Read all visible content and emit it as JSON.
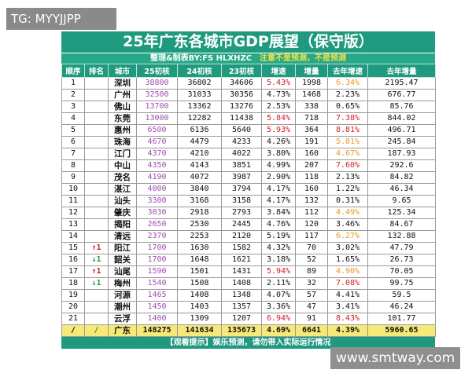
{
  "watermarks": {
    "top_left": "TG: MYYJJPP",
    "bottom_right": "www.smtway.com"
  },
  "title": "25年广东各城市GDP展望（保守版）",
  "subtitle": "整理&制表BY:FS HLXHZC",
  "subtitle_note": "注意不是预测，不是预测",
  "headers": [
    "顺序",
    "排名",
    "城市",
    "25初核",
    "24初核",
    "23初核",
    "增速",
    "增量",
    "去年增速",
    "去年增量"
  ],
  "colors": {
    "header": "#1f9a7e",
    "projection": "#a050b0",
    "high": "#d0202a",
    "mid": "#e89a2a",
    "total_row": "#f6e97a",
    "rank_up": "#d02020",
    "rank_down": "#1a9a50"
  },
  "rows": [
    [
      "1",
      "",
      "深圳",
      "38800",
      "36802",
      "34606",
      "5.43%",
      "1998",
      "6.34%",
      "2195.47"
    ],
    [
      "2",
      "",
      "广州",
      "32500",
      "31033",
      "30356",
      "4.73%",
      "1468",
      "2.23%",
      "676.77"
    ],
    [
      "3",
      "",
      "佛山",
      "13700",
      "13362",
      "13276",
      "2.53%",
      "338",
      "0.65%",
      "85.76"
    ],
    [
      "4",
      "",
      "东莞",
      "13000",
      "12282",
      "11438",
      "5.84%",
      "718",
      "7.38%",
      "844.02"
    ],
    [
      "5",
      "",
      "惠州",
      "6500",
      "6136",
      "5640",
      "5.93%",
      "364",
      "8.81%",
      "496.71"
    ],
    [
      "6",
      "",
      "珠海",
      "4670",
      "4479",
      "4233",
      "4.26%",
      "191",
      "5.81%",
      "245.84"
    ],
    [
      "7",
      "",
      "江门",
      "4370",
      "4210",
      "4022",
      "3.80%",
      "160",
      "4.67%",
      "187.93"
    ],
    [
      "8",
      "",
      "中山",
      "4350",
      "4143",
      "3851",
      "4.99%",
      "207",
      "7.60%",
      "292.6"
    ],
    [
      "9",
      "",
      "茂名",
      "4190",
      "4072",
      "3987",
      "2.90%",
      "118",
      "2.13%",
      "84.82"
    ],
    [
      "10",
      "",
      "湛江",
      "4000",
      "3840",
      "3794",
      "4.17%",
      "160",
      "1.22%",
      "46.34"
    ],
    [
      "11",
      "",
      "汕头",
      "3300",
      "3168",
      "3158",
      "4.17%",
      "132",
      "0.31%",
      "9.65"
    ],
    [
      "12",
      "",
      "肇庆",
      "3030",
      "2918",
      "2793",
      "3.84%",
      "112",
      "4.49%",
      "125.34"
    ],
    [
      "13",
      "",
      "揭阳",
      "2650",
      "2530",
      "2445",
      "4.76%",
      "120",
      "3.46%",
      "84.67"
    ],
    [
      "14",
      "",
      "清远",
      "2370",
      "2253",
      "2120",
      "5.19%",
      "117",
      "6.27%",
      "132.88"
    ],
    [
      "15",
      "↑1",
      "阳江",
      "1700",
      "1630",
      "1582",
      "4.32%",
      "70",
      "3.02%",
      "47.79"
    ],
    [
      "16",
      "↓1",
      "韶关",
      "1700",
      "1648",
      "1621",
      "3.18%",
      "52",
      "1.65%",
      "26.73"
    ],
    [
      "17",
      "↑1",
      "汕尾",
      "1590",
      "1501",
      "1431",
      "5.94%",
      "89",
      "4.90%",
      "70.05"
    ],
    [
      "18",
      "↓1",
      "梅州",
      "1540",
      "1508",
      "1408",
      "2.11%",
      "32",
      "7.08%",
      "99.75"
    ],
    [
      "19",
      "",
      "河源",
      "1465",
      "1408",
      "1348",
      "4.07%",
      "57",
      "4.41%",
      "59.5"
    ],
    [
      "20",
      "",
      "潮州",
      "1450",
      "1403",
      "1357",
      "3.36%",
      "47",
      "3.41%",
      "46.24"
    ],
    [
      "21",
      "",
      "云浮",
      "1400",
      "1309",
      "1207",
      "6.94%",
      "91",
      "8.43%",
      "101.77"
    ]
  ],
  "growth_color": [
    "red",
    "",
    "",
    "red",
    "red",
    "",
    "",
    "",
    "",
    "",
    "",
    "",
    "",
    "",
    "",
    "",
    "red",
    "",
    "",
    "",
    "red"
  ],
  "last_color": [
    "ora",
    "",
    "",
    "red",
    "red",
    "ora",
    "ora",
    "red",
    "",
    "",
    "",
    "ora",
    "",
    "ora",
    "",
    "",
    "ora",
    "red",
    "",
    "",
    "red"
  ],
  "total": [
    "/",
    "/",
    "广东",
    "148275",
    "141634",
    "135673",
    "4.69%",
    "6641",
    "4.39%",
    "5960.65"
  ],
  "footer": "【观看提示】娱乐预测，请勿带入实际运行情况"
}
